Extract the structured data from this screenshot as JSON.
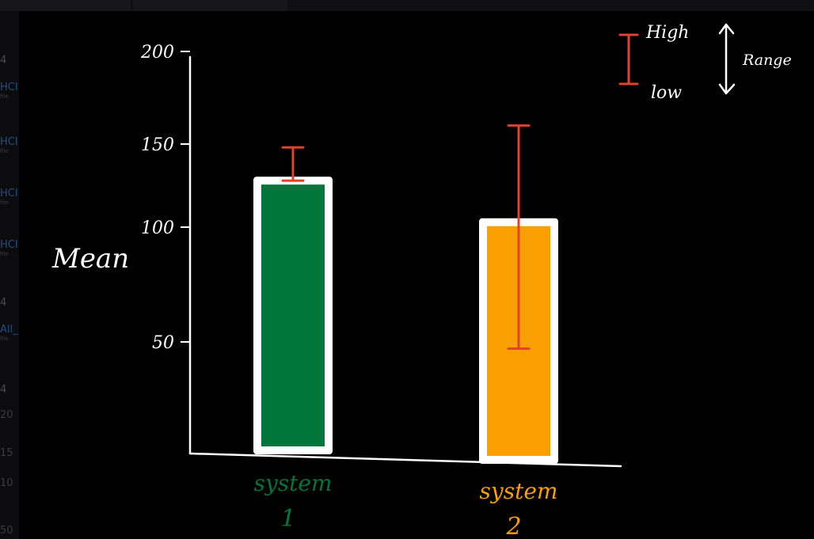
{
  "background_fragments": [
    {
      "text": "4",
      "sub": "",
      "color": "#4a4a50",
      "top": 70
    },
    {
      "text": "HCI",
      "sub": "file",
      "color": "#1f4f86",
      "top": 104
    },
    {
      "text": "HCI",
      "sub": "file",
      "color": "#1f4f86",
      "top": 173
    },
    {
      "text": "HCI",
      "sub": "file",
      "color": "#1f4f86",
      "top": 238
    },
    {
      "text": "HCI",
      "sub": "file",
      "color": "#1f4f86",
      "top": 303
    },
    {
      "text": "4",
      "sub": "",
      "color": "#4a4a50",
      "top": 376
    },
    {
      "text": "All_",
      "sub": "file",
      "color": "#1f4f86",
      "top": 410
    },
    {
      "text": "4",
      "sub": "",
      "color": "#4a4a50",
      "top": 486
    },
    {
      "text": "20",
      "sub": "",
      "color": "#3b3b40",
      "top": 518
    },
    {
      "text": "15",
      "sub": "",
      "color": "#3b3b40",
      "top": 566
    },
    {
      "text": "10",
      "sub": "",
      "color": "#3b3b40",
      "top": 604
    },
    {
      "text": "50",
      "sub": "",
      "color": "#3b3b40",
      "top": 664
    }
  ],
  "chart_data": {
    "type": "bar",
    "title": "",
    "xlabel": "",
    "ylabel": "Mean",
    "ylim": [
      0,
      200
    ],
    "yticks": [
      {
        "value": 200,
        "label": "200"
      },
      {
        "value": 150,
        "label": "150"
      },
      {
        "value": 100,
        "label": "100"
      },
      {
        "value": 50,
        "label": "50"
      }
    ],
    "categories": [
      {
        "line1": "system",
        "line2": "1"
      },
      {
        "line1": "system",
        "line2": "2"
      }
    ],
    "values": [
      128,
      103
    ],
    "error_bars": [
      {
        "low": 128,
        "high": 148
      },
      {
        "low": 47,
        "high": 160
      }
    ],
    "colors": [
      "#00763a",
      "#f99f00"
    ],
    "error_color": "#e2412c",
    "bar_outline_color": "#ffffff",
    "axis_color": "#ffffff",
    "grid": false,
    "legend": {
      "placement": "top-right",
      "high_label": "High",
      "low_label": "low",
      "range_label": "Range"
    }
  }
}
